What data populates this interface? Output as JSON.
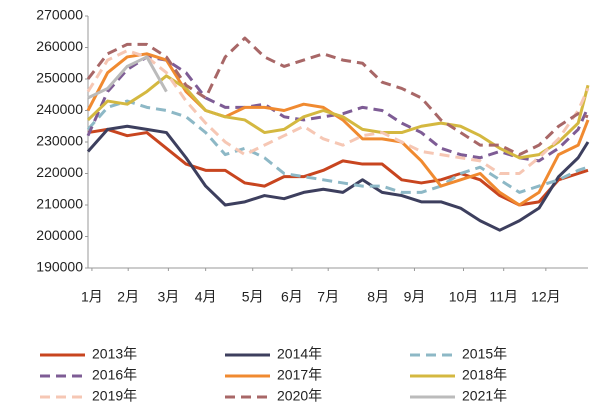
{
  "chart_data": {
    "type": "line",
    "x": [
      1,
      3,
      5,
      7,
      9,
      11,
      13,
      15,
      17,
      19,
      21,
      23,
      25,
      27,
      29,
      31,
      33,
      35,
      37,
      39,
      41,
      43,
      45,
      47,
      49,
      51,
      52
    ],
    "xlim": [
      1,
      52
    ],
    "xticks": [
      {
        "value": 1.4,
        "label": "1月"
      },
      {
        "value": 5.1,
        "label": "2月"
      },
      {
        "value": 9.2,
        "label": "3月"
      },
      {
        "value": 13,
        "label": "4月"
      },
      {
        "value": 17.8,
        "label": "5月"
      },
      {
        "value": 21.8,
        "label": "6月"
      },
      {
        "value": 25.5,
        "label": "7月"
      },
      {
        "value": 30.6,
        "label": "8月"
      },
      {
        "value": 34.3,
        "label": "9月"
      },
      {
        "value": 39.3,
        "label": "10月"
      },
      {
        "value": 43.4,
        "label": "11月"
      },
      {
        "value": 47.7,
        "label": "12月"
      }
    ],
    "ylim": [
      190000,
      270000
    ],
    "yticks": [
      190000,
      200000,
      210000,
      220000,
      230000,
      240000,
      250000,
      260000,
      270000
    ],
    "grid": false,
    "legend": "bottom",
    "series": [
      {
        "name": "2013年",
        "color": "#c8451f",
        "dashed": false,
        "values": [
          233000,
          234000,
          232000,
          233000,
          228000,
          223000,
          221000,
          221000,
          217000,
          216000,
          219000,
          219000,
          221000,
          224000,
          223000,
          223000,
          218000,
          217000,
          218000,
          220000,
          218000,
          213000,
          210000,
          211000,
          218000,
          220000,
          221000
        ]
      },
      {
        "name": "2014年",
        "color": "#3d3f5e",
        "dashed": false,
        "values": [
          227000,
          234000,
          235000,
          234000,
          233000,
          225000,
          216000,
          210000,
          211000,
          213000,
          212000,
          214000,
          215000,
          214000,
          218000,
          214000,
          213000,
          211000,
          211000,
          209000,
          205000,
          202000,
          205000,
          209000,
          219000,
          225000,
          230000
        ]
      },
      {
        "name": "2015年",
        "color": "#8db8c6",
        "dashed": true,
        "values": [
          234000,
          241000,
          243000,
          241000,
          240000,
          238000,
          233000,
          226000,
          228000,
          225000,
          220000,
          219000,
          218000,
          217000,
          216000,
          216000,
          214000,
          214000,
          216000,
          220000,
          222000,
          218000,
          214000,
          216000,
          218000,
          221000,
          222000
        ]
      },
      {
        "name": "2016年",
        "color": "#7e5c95",
        "dashed": true,
        "values": [
          232000,
          246000,
          253000,
          257000,
          256000,
          252000,
          244000,
          241000,
          241000,
          242000,
          238000,
          237000,
          238000,
          239000,
          241000,
          240000,
          236000,
          233000,
          228000,
          226000,
          225000,
          227000,
          225000,
          224000,
          228000,
          234000,
          241000
        ]
      },
      {
        "name": "2017年",
        "color": "#f08a30",
        "dashed": false,
        "values": [
          240000,
          252000,
          257000,
          258000,
          256000,
          246000,
          240000,
          238000,
          241000,
          241000,
          240000,
          242000,
          241000,
          237000,
          231000,
          231000,
          230000,
          224000,
          216000,
          218000,
          220000,
          214000,
          210000,
          214000,
          226000,
          229000,
          237000
        ]
      },
      {
        "name": "2018年",
        "color": "#d4b840",
        "dashed": false,
        "values": [
          237000,
          243000,
          242000,
          246000,
          251000,
          247000,
          240000,
          238000,
          237000,
          233000,
          234000,
          238000,
          240000,
          238000,
          234000,
          233000,
          233000,
          235000,
          236000,
          235000,
          232000,
          228000,
          225000,
          226000,
          230000,
          236000,
          248000
        ]
      },
      {
        "name": "2019年",
        "color": "#f6c7b4",
        "dashed": true,
        "values": [
          246000,
          256000,
          259000,
          257000,
          252000,
          243000,
          236000,
          230000,
          226000,
          229000,
          232000,
          235000,
          231000,
          229000,
          232000,
          233000,
          230000,
          227000,
          226000,
          225000,
          224000,
          220000,
          220000,
          225000,
          231000,
          240000,
          247000
        ]
      },
      {
        "name": "2020年",
        "color": "#a86767",
        "dashed": true,
        "values": [
          250000,
          258000,
          261000,
          261000,
          257000,
          248000,
          244000,
          257000,
          263000,
          257000,
          254000,
          256000,
          258000,
          256000,
          255000,
          249000,
          247000,
          244000,
          237000,
          233000,
          229000,
          229000,
          226000,
          229000,
          235000,
          239000,
          238000
        ]
      },
      {
        "name": "2021年",
        "color": "#bbbbbb",
        "dashed": false,
        "values": [
          244000,
          247000,
          254000,
          257000,
          246000,
          null,
          null,
          null,
          null,
          null,
          null,
          null,
          null,
          null,
          null,
          null,
          null,
          null,
          null,
          null,
          null,
          null,
          null,
          null,
          null,
          null,
          null
        ]
      }
    ]
  }
}
